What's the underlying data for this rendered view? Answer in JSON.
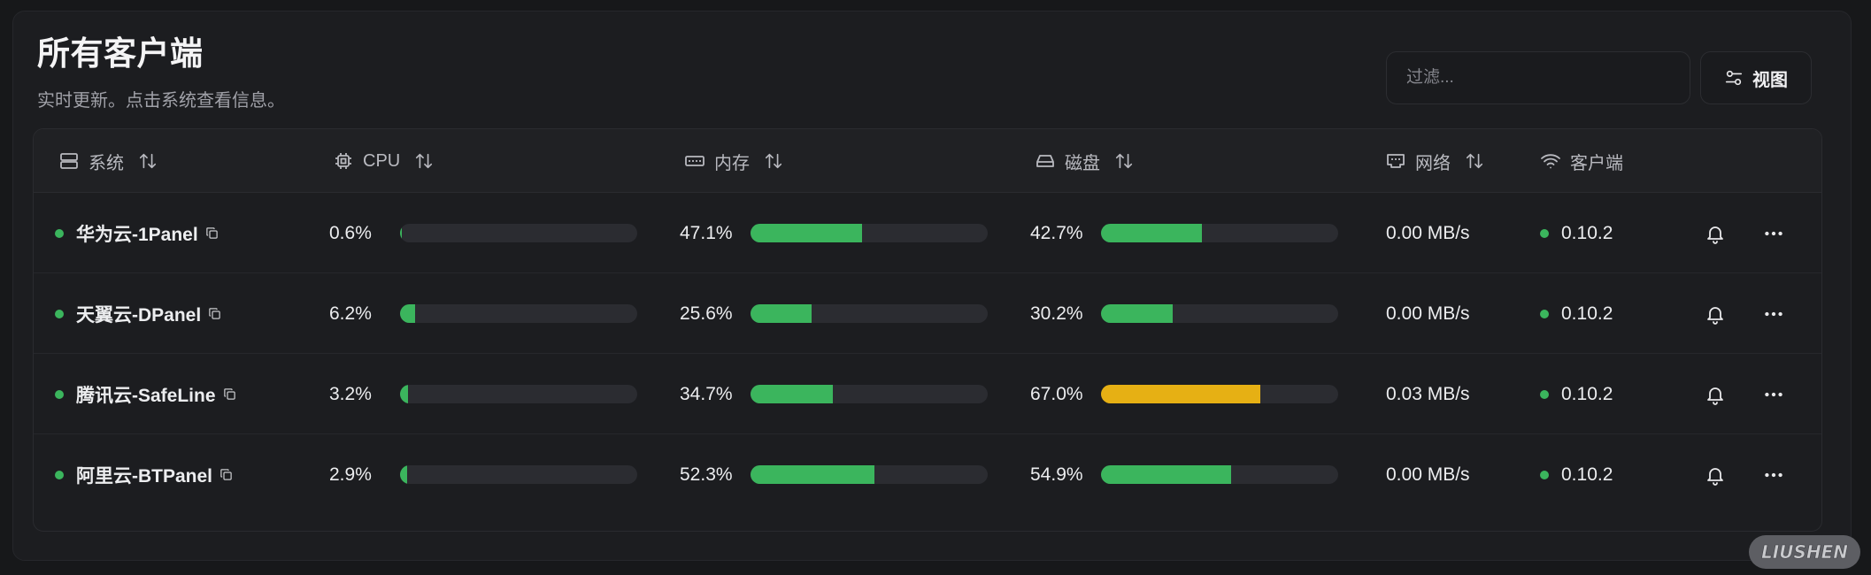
{
  "header": {
    "title": "所有客户端",
    "subtitle": "实时更新。点击系统查看信息。"
  },
  "toolbar": {
    "filter_placeholder": "过滤...",
    "view_label": "视图"
  },
  "columns": {
    "system": "系统",
    "cpu": "CPU",
    "memory": "内存",
    "disk": "磁盘",
    "network": "网络",
    "client": "客户端"
  },
  "rows": [
    {
      "name": "华为云-1Panel",
      "cpu": "0.6%",
      "cpu_value": 0.6,
      "memory": "47.1%",
      "memory_value": 47.1,
      "disk": "42.7%",
      "disk_value": 42.7,
      "network": "0.00 MB/s",
      "version": "0.10.2"
    },
    {
      "name": "天翼云-DPanel",
      "cpu": "6.2%",
      "cpu_value": 6.2,
      "memory": "25.6%",
      "memory_value": 25.6,
      "disk": "30.2%",
      "disk_value": 30.2,
      "network": "0.00 MB/s",
      "version": "0.10.2"
    },
    {
      "name": "腾讯云-SafeLine",
      "cpu": "3.2%",
      "cpu_value": 3.2,
      "memory": "34.7%",
      "memory_value": 34.7,
      "disk": "67.0%",
      "disk_value": 67.0,
      "network": "0.03 MB/s",
      "version": "0.10.2"
    },
    {
      "name": "阿里云-BTPanel",
      "cpu": "2.9%",
      "cpu_value": 2.9,
      "memory": "52.3%",
      "memory_value": 52.3,
      "disk": "54.9%",
      "disk_value": 54.9,
      "network": "0.00 MB/s",
      "version": "0.10.2"
    }
  ],
  "colors": {
    "ok": "#3bb55d",
    "warn": "#e6b014",
    "status_online": "#3bb55d"
  },
  "watermark": "LIUSHEN"
}
